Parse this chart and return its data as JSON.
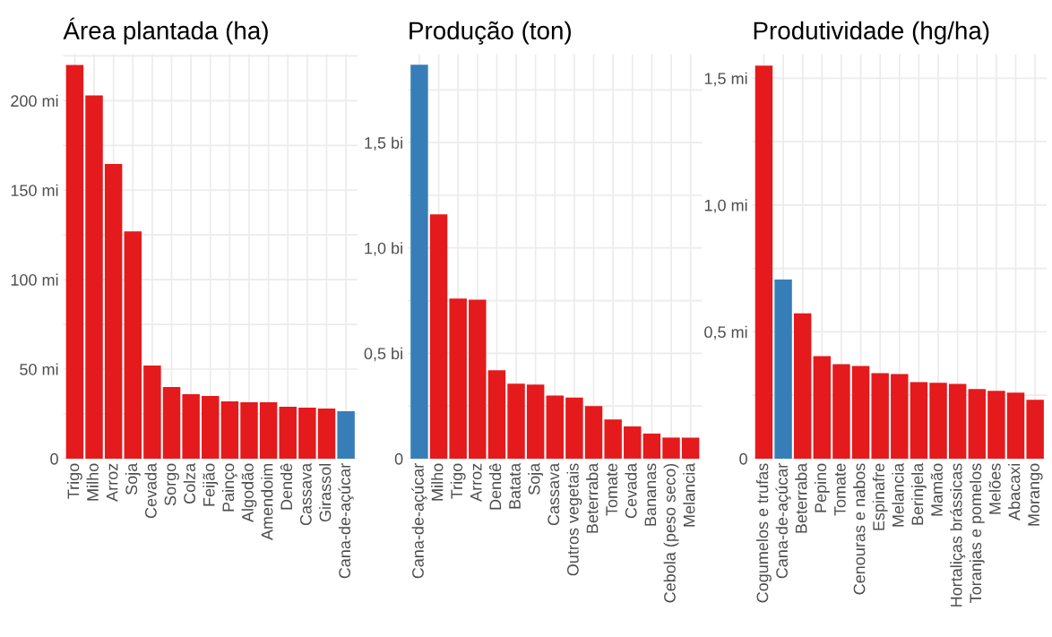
{
  "chart_data": [
    {
      "type": "bar",
      "title": "Área plantada (ha)",
      "categories": [
        "Trigo",
        "Milho",
        "Arroz",
        "Soja",
        "Cevada",
        "Sorgo",
        "Colza",
        "Feijão",
        "Painço",
        "Algodão",
        "Amendoim",
        "Dendê",
        "Cassava",
        "Girassol",
        "Cana-de-açúcar"
      ],
      "values": [
        220,
        203,
        164.6,
        127,
        52,
        40,
        36,
        35,
        32,
        31.5,
        31.5,
        29,
        28.5,
        28,
        26.5
      ],
      "colors": [
        "#e41a1c",
        "#e41a1c",
        "#e41a1c",
        "#e41a1c",
        "#e41a1c",
        "#e41a1c",
        "#e41a1c",
        "#e41a1c",
        "#e41a1c",
        "#e41a1c",
        "#e41a1c",
        "#e41a1c",
        "#e41a1c",
        "#e41a1c",
        "#377eb8"
      ],
      "ylim": [
        0,
        226
      ],
      "yticks": [
        0,
        {
          "value": 25,
          "label": null
        },
        {
          "value": 50,
          "label": "50 mi"
        },
        {
          "value": 75,
          "label": null
        },
        {
          "value": 100,
          "label": "100 mi"
        },
        {
          "value": 125,
          "label": null
        },
        {
          "value": 150,
          "label": "150 mi"
        },
        {
          "value": 175,
          "label": null
        },
        {
          "value": 200,
          "label": "200 mi"
        },
        {
          "value": 225,
          "label": null
        }
      ],
      "grid": true
    },
    {
      "type": "bar",
      "title": "Produção (ton)",
      "categories": [
        "Cana-de-açúcar",
        "Milho",
        "Trigo",
        "Arroz",
        "Dendê",
        "Batata",
        "Soja",
        "Cassava",
        "Outros vegetais",
        "Beterraba",
        "Tomate",
        "Cevada",
        "Bananas",
        "Cebola (peso seco)",
        "Melancia"
      ],
      "values": [
        1.87,
        1.16,
        0.76,
        0.755,
        0.42,
        0.356,
        0.352,
        0.3,
        0.29,
        0.25,
        0.186,
        0.153,
        0.119,
        0.1,
        0.1
      ],
      "colors": [
        "#377eb8",
        "#e41a1c",
        "#e41a1c",
        "#e41a1c",
        "#e41a1c",
        "#e41a1c",
        "#e41a1c",
        "#e41a1c",
        "#e41a1c",
        "#e41a1c",
        "#e41a1c",
        "#e41a1c",
        "#e41a1c",
        "#e41a1c",
        "#e41a1c"
      ],
      "ylim": [
        0,
        1.92
      ],
      "yticks": [
        0,
        {
          "value": 0.25,
          "label": null
        },
        {
          "value": 0.5,
          "label": "0,5 bi"
        },
        {
          "value": 0.75,
          "label": null
        },
        {
          "value": 1.0,
          "label": "1,0 bi"
        },
        {
          "value": 1.25,
          "label": null
        },
        {
          "value": 1.5,
          "label": "1,5 bi"
        },
        {
          "value": 1.75,
          "label": null
        }
      ],
      "grid": true
    },
    {
      "type": "bar",
      "title": "Produtividade (hg/ha)",
      "categories": [
        "Cogumelos e trufas",
        "Cana-de-açúcar",
        "Beterraba",
        "Pepino",
        "Tomate",
        "Cenouras e nabos",
        "Espinafre",
        "Melancia",
        "Berinjela",
        "Mamão",
        "Hortaliças brássicas",
        "Toranjas e pomelos",
        "Melões",
        "Abacaxi",
        "Morango"
      ],
      "values": [
        1.55,
        0.706,
        0.573,
        0.404,
        0.372,
        0.365,
        0.337,
        0.334,
        0.302,
        0.299,
        0.295,
        0.274,
        0.267,
        0.26,
        0.232
      ],
      "colors": [
        "#e41a1c",
        "#377eb8",
        "#e41a1c",
        "#e41a1c",
        "#e41a1c",
        "#e41a1c",
        "#e41a1c",
        "#e41a1c",
        "#e41a1c",
        "#e41a1c",
        "#e41a1c",
        "#e41a1c",
        "#e41a1c",
        "#e41a1c",
        "#e41a1c"
      ],
      "ylim": [
        0,
        1.595
      ],
      "yticks": [
        0,
        {
          "value": 0.25,
          "label": null
        },
        {
          "value": 0.5,
          "label": "0,5 mi"
        },
        {
          "value": 0.75,
          "label": null
        },
        {
          "value": 1.0,
          "label": "1,0 mi"
        },
        {
          "value": 1.25,
          "label": null
        },
        {
          "value": 1.5,
          "label": "1,5 mi"
        }
      ],
      "grid": true
    }
  ]
}
